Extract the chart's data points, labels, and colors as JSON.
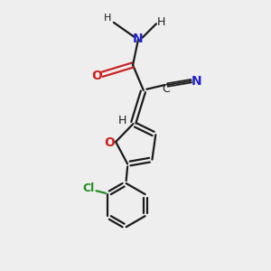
{
  "background_color": "#eeeeee",
  "bond_color": "#1a1a1a",
  "N_color": "#2222cc",
  "O_color": "#cc2222",
  "Cl_color": "#228B22",
  "figsize": [
    3.0,
    3.0
  ],
  "dpi": 100,
  "xlim": [
    0,
    10
  ],
  "ylim": [
    0,
    10
  ]
}
